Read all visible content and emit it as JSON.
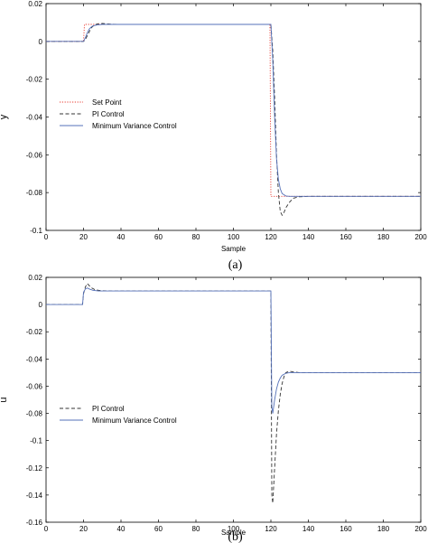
{
  "chart_data": [
    {
      "type": "line",
      "caption": "(a)",
      "xlabel": "Sample",
      "ylabel": "y",
      "xlim": [
        0,
        200
      ],
      "ylim": [
        -0.1,
        0.02
      ],
      "xticks": [
        0,
        20,
        40,
        60,
        80,
        100,
        120,
        140,
        160,
        180,
        200
      ],
      "yticks": [
        0.02,
        0,
        -0.02,
        -0.04,
        -0.06,
        -0.08,
        -0.1
      ],
      "grid": false,
      "legend_position": "left-center",
      "series": [
        {
          "name": "Set Point",
          "color": "#e8382e",
          "style": "dotted",
          "points": [
            [
              0,
              0
            ],
            [
              20,
              0
            ],
            [
              20.5,
              0.009
            ],
            [
              119.5,
              0.009
            ],
            [
              120,
              -0.082
            ],
            [
              200,
              -0.082
            ]
          ]
        },
        {
          "name": "PI Control",
          "color": "#333333",
          "style": "dashed",
          "points": [
            [
              0,
              0
            ],
            [
              20,
              0
            ],
            [
              21,
              0.001
            ],
            [
              22,
              0.003
            ],
            [
              23,
              0.005
            ],
            [
              24,
              0.007
            ],
            [
              25,
              0.008
            ],
            [
              26,
              0.0088
            ],
            [
              28,
              0.0094
            ],
            [
              30,
              0.0095
            ],
            [
              32,
              0.0093
            ],
            [
              35,
              0.0091
            ],
            [
              40,
              0.009
            ],
            [
              120,
              0.009
            ],
            [
              121,
              -0.005
            ],
            [
              122,
              -0.03
            ],
            [
              123,
              -0.06
            ],
            [
              124,
              -0.08
            ],
            [
              125,
              -0.09
            ],
            [
              126,
              -0.092
            ],
            [
              127,
              -0.0905
            ],
            [
              128,
              -0.088
            ],
            [
              130,
              -0.085
            ],
            [
              132,
              -0.083
            ],
            [
              135,
              -0.0822
            ],
            [
              140,
              -0.082
            ],
            [
              200,
              -0.082
            ]
          ]
        },
        {
          "name": "Minimum Variance Control",
          "color": "#5470b8",
          "style": "solid",
          "points": [
            [
              0,
              0
            ],
            [
              20,
              0
            ],
            [
              21,
              0.002
            ],
            [
              22,
              0.0045
            ],
            [
              23,
              0.0065
            ],
            [
              24,
              0.0075
            ],
            [
              25,
              0.0082
            ],
            [
              27,
              0.0087
            ],
            [
              30,
              0.009
            ],
            [
              120,
              0.009
            ],
            [
              121,
              -0.01
            ],
            [
              122,
              -0.04
            ],
            [
              123,
              -0.062
            ],
            [
              124,
              -0.073
            ],
            [
              125,
              -0.078
            ],
            [
              126,
              -0.0805
            ],
            [
              128,
              -0.0818
            ],
            [
              130,
              -0.082
            ],
            [
              200,
              -0.082
            ]
          ]
        }
      ]
    },
    {
      "type": "line",
      "caption": "(b)",
      "xlabel": "Sample",
      "ylabel": "u",
      "xlim": [
        0,
        200
      ],
      "ylim": [
        -0.16,
        0.02
      ],
      "xticks": [
        0,
        20,
        40,
        60,
        80,
        100,
        120,
        140,
        160,
        180,
        200
      ],
      "yticks": [
        0.02,
        0,
        -0.02,
        -0.04,
        -0.06,
        -0.08,
        -0.1,
        -0.12,
        -0.14,
        -0.16
      ],
      "grid": false,
      "legend_position": "left-center",
      "series": [
        {
          "name": "PI Control",
          "color": "#333333",
          "style": "dashed",
          "points": [
            [
              0,
              0
            ],
            [
              19.5,
              0
            ],
            [
              20,
              0.008
            ],
            [
              21,
              0.013
            ],
            [
              22,
              0.0155
            ],
            [
              23,
              0.014
            ],
            [
              24,
              0.0125
            ],
            [
              26,
              0.011
            ],
            [
              28,
              0.0105
            ],
            [
              30,
              0.0102
            ],
            [
              35,
              0.01
            ],
            [
              120,
              0.01
            ],
            [
              120.5,
              -0.14
            ],
            [
              121,
              -0.146
            ],
            [
              122,
              -0.12
            ],
            [
              123,
              -0.095
            ],
            [
              124,
              -0.078
            ],
            [
              125,
              -0.066
            ],
            [
              126,
              -0.058
            ],
            [
              127,
              -0.053
            ],
            [
              128,
              -0.05
            ],
            [
              130,
              -0.049
            ],
            [
              132,
              -0.0495
            ],
            [
              135,
              -0.05
            ],
            [
              200,
              -0.05
            ]
          ]
        },
        {
          "name": "Minimum Variance Control",
          "color": "#5470b8",
          "style": "solid",
          "points": [
            [
              0,
              0
            ],
            [
              19.5,
              0
            ],
            [
              20,
              0.009
            ],
            [
              21,
              0.0115
            ],
            [
              22,
              0.0122
            ],
            [
              23,
              0.0115
            ],
            [
              25,
              0.0105
            ],
            [
              28,
              0.01
            ],
            [
              120,
              0.01
            ],
            [
              120.5,
              -0.075
            ],
            [
              121,
              -0.08
            ],
            [
              122,
              -0.07
            ],
            [
              123,
              -0.062
            ],
            [
              124,
              -0.057
            ],
            [
              125,
              -0.054
            ],
            [
              126,
              -0.052
            ],
            [
              128,
              -0.0505
            ],
            [
              130,
              -0.05
            ],
            [
              200,
              -0.05
            ]
          ]
        }
      ]
    }
  ]
}
